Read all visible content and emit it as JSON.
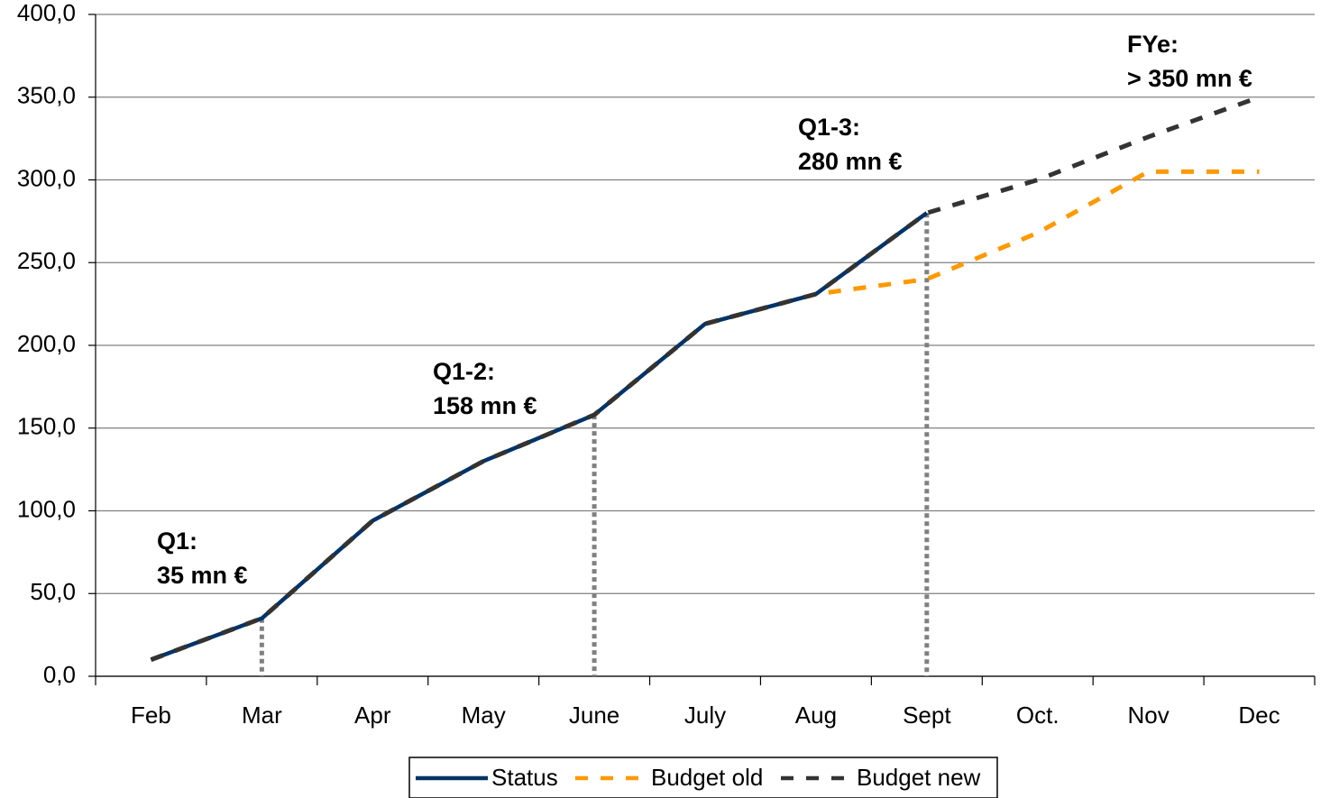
{
  "chart_data": {
    "type": "line",
    "categories": [
      "Feb",
      "Mar",
      "Apr",
      "May",
      "June",
      "July",
      "Aug",
      "Sept",
      "Oct.",
      "Nov",
      "Dec"
    ],
    "series": [
      {
        "name": "Budget old",
        "color": "#ff9900",
        "dash": true,
        "values": [
          10,
          35,
          94,
          130,
          158,
          213,
          231,
          240,
          268,
          305,
          305
        ]
      },
      {
        "name": "Status",
        "color": "#003366",
        "dash": false,
        "values": [
          10,
          35,
          94,
          130,
          158,
          213,
          231,
          280,
          null,
          null,
          null
        ]
      },
      {
        "name": "Budget new",
        "color": "#333333",
        "dash": true,
        "values": [
          10,
          35,
          94,
          130,
          158,
          213,
          231,
          280,
          300,
          326,
          350
        ]
      }
    ],
    "ylim": [
      0,
      400
    ],
    "yticks": [
      {
        "value": 0,
        "label": "0,0"
      },
      {
        "value": 50,
        "label": "50,0"
      },
      {
        "value": 100,
        "label": "100,0"
      },
      {
        "value": 150,
        "label": "150,0"
      },
      {
        "value": 200,
        "label": "200,0"
      },
      {
        "value": 250,
        "label": "250,0"
      },
      {
        "value": 300,
        "label": "300,0"
      },
      {
        "value": 350,
        "label": "350,0"
      },
      {
        "value": 400,
        "label": "400,0"
      }
    ],
    "grid": true,
    "legend": "bottom",
    "annotations": [
      [
        "Q1:",
        "35 mn €"
      ],
      [
        "Q1-2:",
        "158 mn €"
      ],
      [
        "Q1-3:",
        "280 mn €"
      ],
      [
        "FYe:",
        "> 350 mn €"
      ]
    ]
  }
}
